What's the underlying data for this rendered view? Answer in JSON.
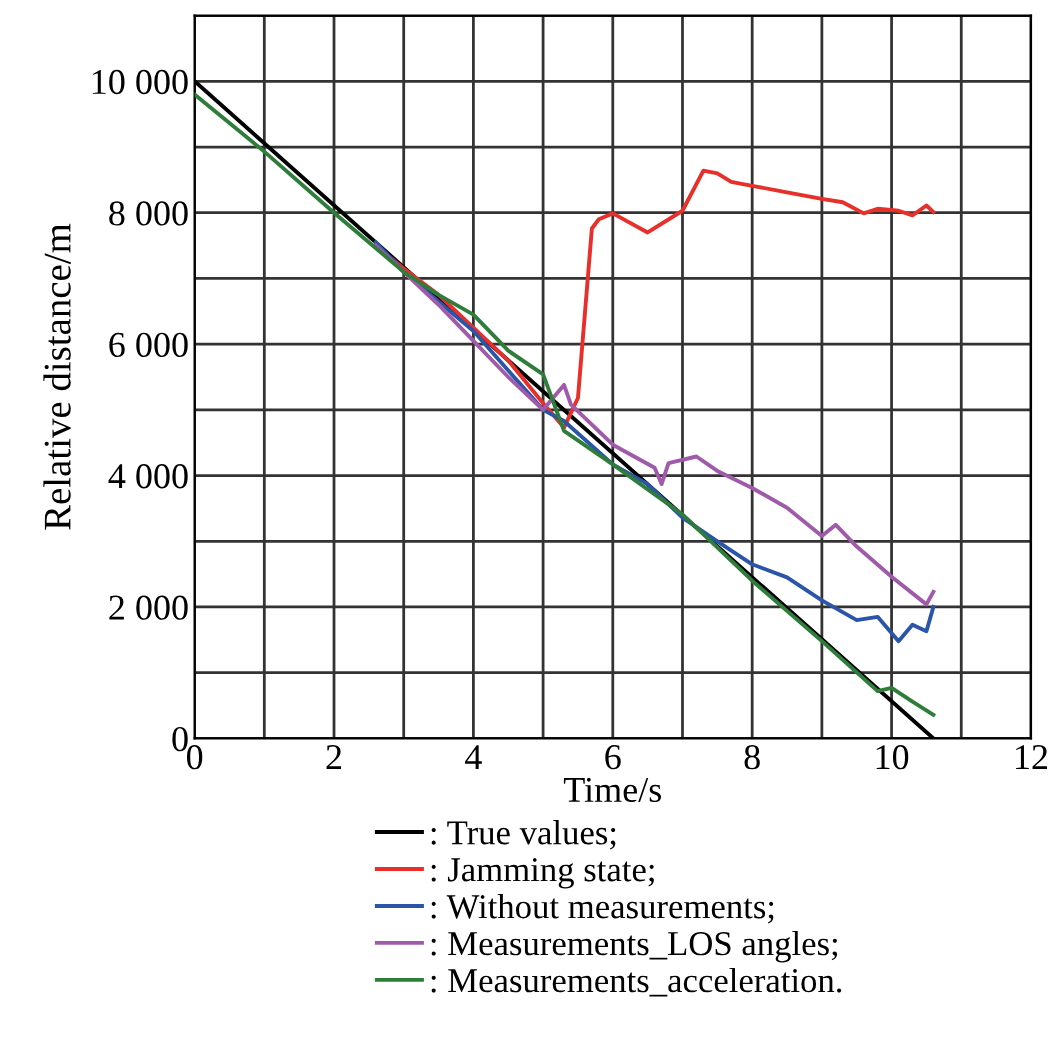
{
  "chart_data": {
    "type": "line",
    "xlabel": "Time/s",
    "ylabel": "Relative distance/m",
    "xlim": [
      0,
      12
    ],
    "ylim": [
      0,
      11000
    ],
    "xticks": [
      0,
      {
        "value": 1,
        "label": null
      },
      2,
      {
        "value": 3,
        "label": null
      },
      4,
      {
        "value": 5,
        "label": null
      },
      6,
      {
        "value": 7,
        "label": null
      },
      8,
      {
        "value": 9,
        "label": null
      },
      10,
      {
        "value": 11,
        "label": null
      },
      12
    ],
    "yticks": [
      0,
      {
        "value": 1000,
        "label": null
      },
      {
        "value": 2000,
        "label": "2 000"
      },
      {
        "value": 3000,
        "label": null
      },
      {
        "value": 4000,
        "label": "4 000"
      },
      {
        "value": 5000,
        "label": null
      },
      {
        "value": 6000,
        "label": "6 000"
      },
      {
        "value": 7000,
        "label": null
      },
      {
        "value": 8000,
        "label": "8 000"
      },
      {
        "value": 9000,
        "label": null
      },
      {
        "value": 10000,
        "label": "10 000"
      },
      {
        "value": 11000,
        "label": null
      }
    ],
    "grid": true,
    "legend": "bottom",
    "marker": "none",
    "line_style": "solid",
    "series": [
      {
        "name": ": True values;",
        "color": "#000000",
        "x": [
          0,
          10.6
        ],
        "values": [
          10000,
          0
        ]
      },
      {
        "name": ": Jamming state;",
        "color": "#e8302a",
        "x": [
          2.6,
          3,
          3.5,
          4,
          4.5,
          5,
          5.3,
          5.5,
          5.7,
          5.8,
          6,
          6.5,
          7,
          7.3,
          7.5,
          7.7,
          8,
          8.5,
          9,
          9.3,
          9.6,
          9.8,
          10.1,
          10.3,
          10.5,
          10.6
        ],
        "values": [
          7500,
          7150,
          6750,
          6250,
          5750,
          5100,
          4730,
          5180,
          7760,
          7900,
          7990,
          7700,
          8030,
          8640,
          8600,
          8470,
          8410,
          8310,
          8210,
          8160,
          7990,
          8060,
          8030,
          7960,
          8110,
          8010
        ]
      },
      {
        "name": ": Without measurements;",
        "color": "#2a55a8",
        "x": [
          2.6,
          3,
          3.5,
          4,
          4.5,
          5,
          5.3,
          6,
          6.5,
          7,
          7.5,
          8,
          8.5,
          9,
          9.5,
          9.8,
          10.1,
          10.3,
          10.5,
          10.6
        ],
        "values": [
          7550,
          7100,
          6650,
          6200,
          5600,
          5000,
          4830,
          4170,
          3870,
          3360,
          3000,
          2650,
          2450,
          2100,
          1800,
          1850,
          1480,
          1730,
          1630,
          2000
        ]
      },
      {
        "name": ": Measurements_LOS angles;",
        "color": "#a05aaa",
        "x": [
          2.6,
          3,
          3.5,
          4,
          4.5,
          5,
          5.3,
          5.4,
          6,
          6.6,
          6.7,
          6.8,
          7.2,
          7.5,
          8,
          8.5,
          9,
          9.2,
          9.5,
          10,
          10.5,
          10.6
        ],
        "values": [
          7500,
          7100,
          6600,
          6050,
          5500,
          5000,
          5380,
          5080,
          4470,
          4120,
          3870,
          4190,
          4290,
          4070,
          3810,
          3510,
          3080,
          3250,
          2920,
          2460,
          2040,
          2230
        ]
      },
      {
        "name": ": Measurements_acceleration.",
        "color": "#2e7d3a",
        "x": [
          0,
          1,
          2,
          3,
          3.5,
          4,
          4.5,
          5,
          5.3,
          6,
          7,
          8,
          9,
          9.8,
          10,
          10.3,
          10.6
        ],
        "values": [
          9800,
          8930,
          8000,
          7100,
          6750,
          6450,
          5900,
          5540,
          4680,
          4170,
          3410,
          2400,
          1480,
          720,
          770,
          560,
          360
        ]
      }
    ]
  }
}
